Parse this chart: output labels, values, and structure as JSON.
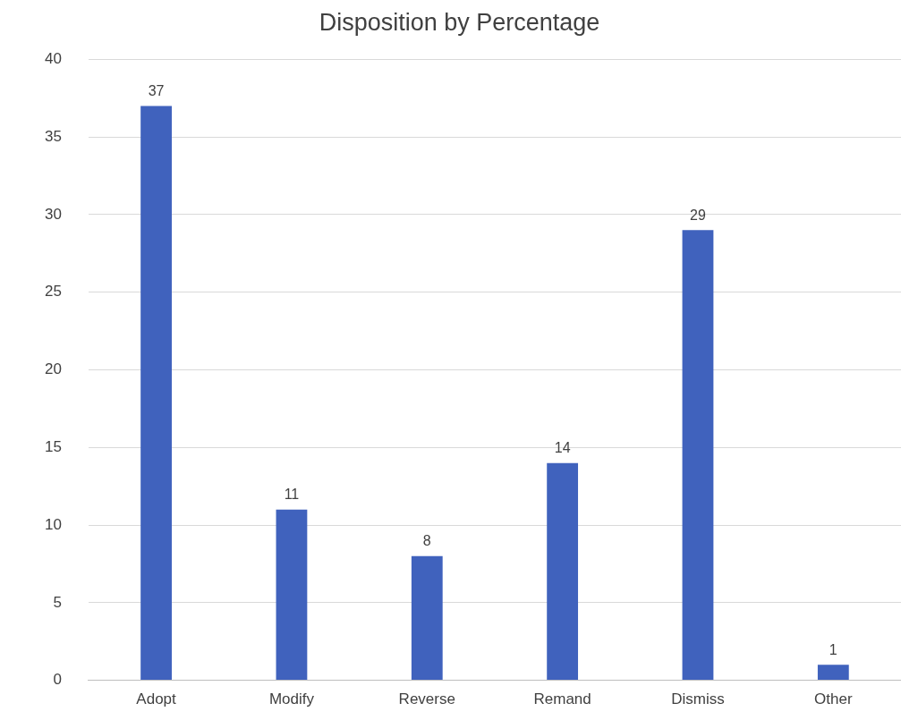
{
  "chart_data": {
    "type": "bar",
    "title": "Disposition by Percentage",
    "categories": [
      "Adopt",
      "Modify",
      "Reverse",
      "Remand",
      "Dismiss",
      "Other"
    ],
    "values": [
      37,
      11,
      8,
      14,
      29,
      1
    ],
    "color": "#4062bd",
    "ylim": [
      0,
      40
    ],
    "yticks": [
      0,
      5,
      10,
      15,
      20,
      25,
      30,
      35,
      40
    ],
    "grid": "y",
    "data_labels": true
  }
}
